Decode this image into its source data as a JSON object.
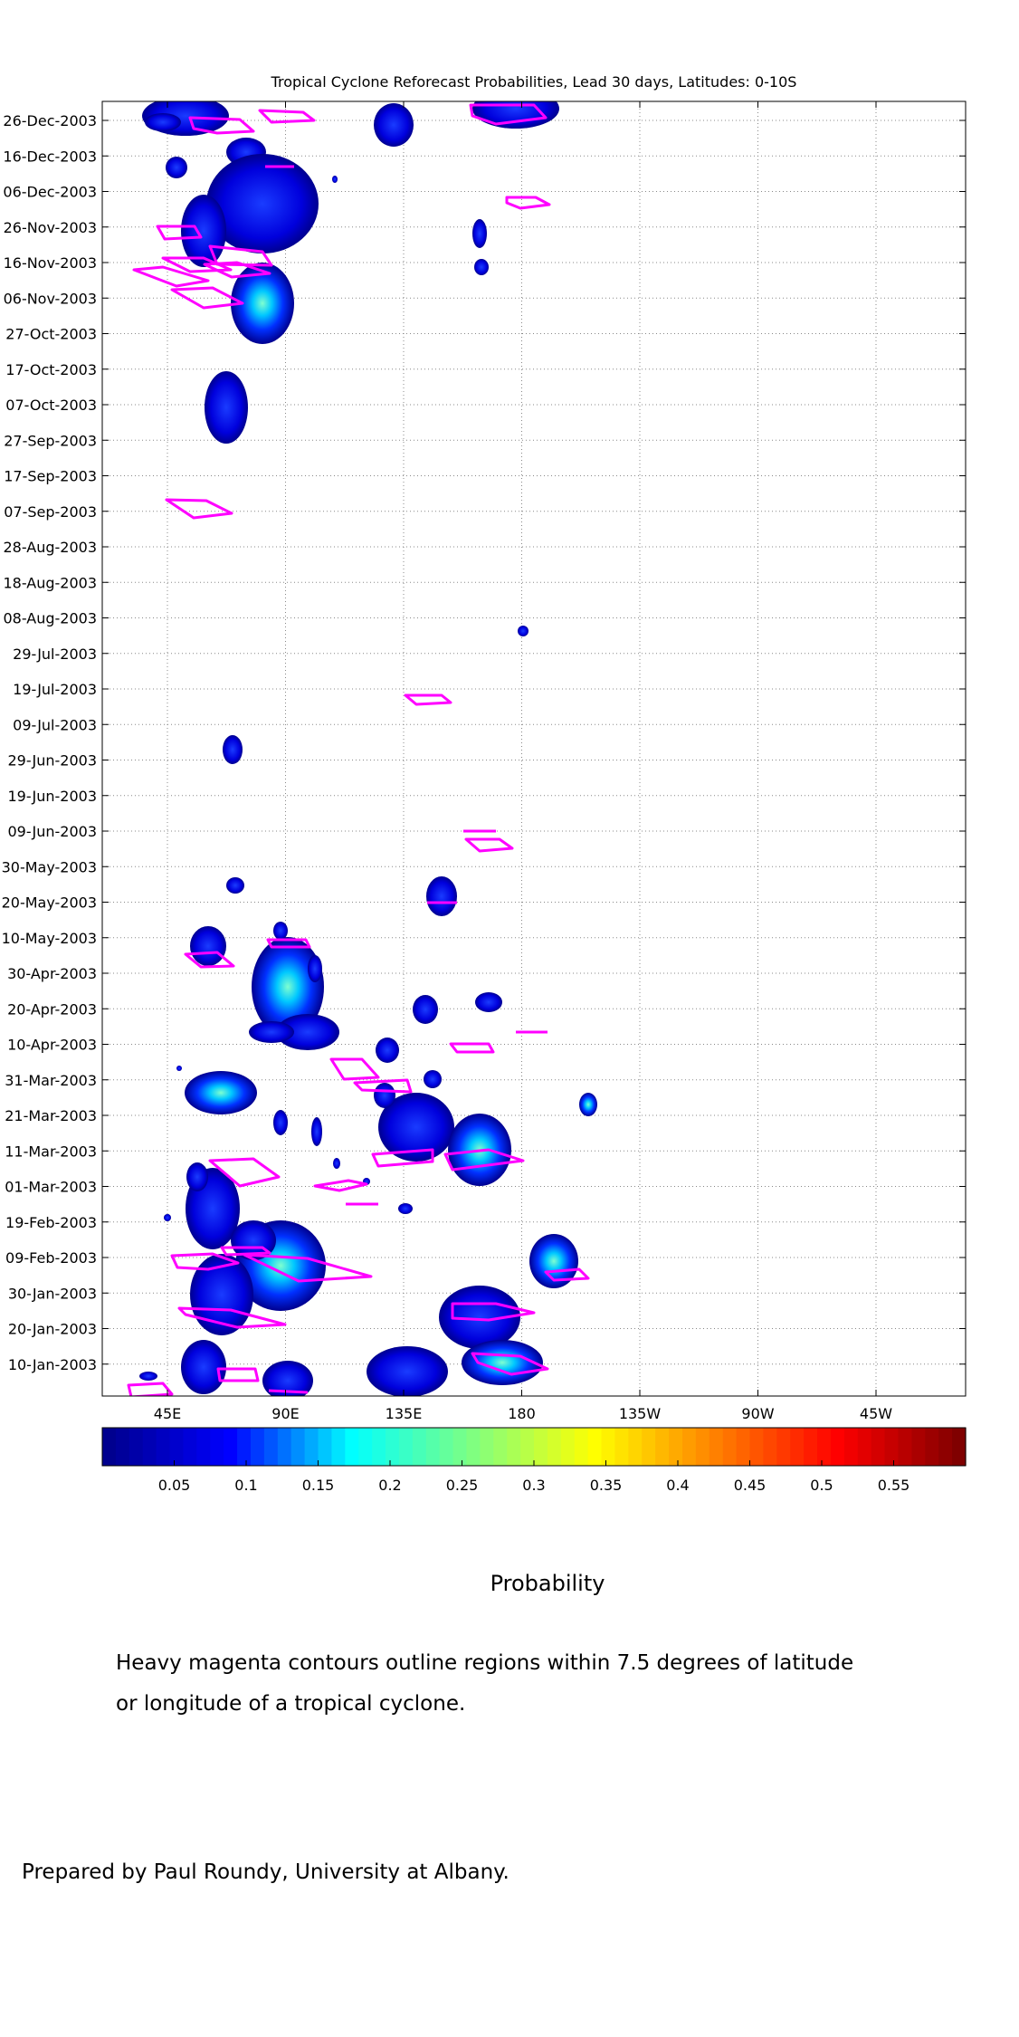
{
  "chart_data": {
    "type": "heatmap",
    "title": "Tropical Cyclone Reforecast Probabilities, Lead 30 days, Latitudes: 0-10S",
    "x_ticks": [
      "45E",
      "90E",
      "135E",
      "180",
      "135W",
      "90W",
      "45W"
    ],
    "y_ticks": [
      "26-Dec-2003",
      "16-Dec-2003",
      "06-Dec-2003",
      "26-Nov-2003",
      "16-Nov-2003",
      "06-Nov-2003",
      "27-Oct-2003",
      "17-Oct-2003",
      "07-Oct-2003",
      "27-Sep-2003",
      "17-Sep-2003",
      "07-Sep-2003",
      "28-Aug-2003",
      "18-Aug-2003",
      "08-Aug-2003",
      "29-Jul-2003",
      "19-Jul-2003",
      "09-Jul-2003",
      "29-Jun-2003",
      "19-Jun-2003",
      "09-Jun-2003",
      "30-May-2003",
      "20-May-2003",
      "10-May-2003",
      "30-Apr-2003",
      "20-Apr-2003",
      "10-Apr-2003",
      "31-Mar-2003",
      "21-Mar-2003",
      "11-Mar-2003",
      "01-Mar-2003",
      "19-Feb-2003",
      "09-Feb-2003",
      "30-Jan-2003",
      "20-Jan-2003",
      "10-Jan-2003"
    ],
    "colorbar_ticks": [
      "0.05",
      "0.1",
      "0.15",
      "0.2",
      "0.25",
      "0.3",
      "0.35",
      "0.4",
      "0.45",
      "0.5",
      "0.55"
    ],
    "colorbar_label": "Probability",
    "grid": true,
    "contour_color": "#ff00ff",
    "colormap": [
      "#00008f",
      "#0000ff",
      "#00ffff",
      "#80ff80",
      "#ffff00",
      "#ff8000",
      "#ff0000",
      "#800000"
    ]
  },
  "note": {
    "line1": "Heavy magenta contours outline regions within 7.5 degrees of latitude",
    "line2": "or longitude of a tropical cyclone."
  },
  "credit": "Prepared by Paul Roundy, University at Albany."
}
